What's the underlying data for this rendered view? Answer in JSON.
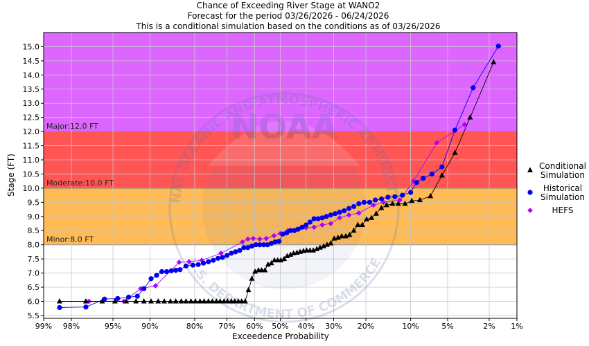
{
  "chart_data": {
    "type": "line",
    "title": "Chance of Exceeding River Stage at WANO2",
    "subtitle": "Forecast for the period 03/26/2026 - 06/24/2026",
    "subtitle2": "This is a conditional simulation based on the conditions as of 03/26/2026",
    "xlabel": "Exceedence Probability",
    "ylabel": "Stage (FT)",
    "x_scale": "normal-probability",
    "xlim": [
      99,
      1
    ],
    "ylim": [
      5.4,
      15.5
    ],
    "y_ticks": [
      {
        "v": 5.5,
        "label": "5.5"
      },
      {
        "v": 6.0,
        "label": "6.0"
      },
      {
        "v": 6.5,
        "label": "6.5"
      },
      {
        "v": 7.0,
        "label": "7.0"
      },
      {
        "v": 7.5,
        "label": "7.5"
      },
      {
        "v": 8.0,
        "label": "8.0"
      },
      {
        "v": 8.5,
        "label": "8.5"
      },
      {
        "v": 9.0,
        "label": "9.0"
      },
      {
        "v": 9.5,
        "label": "9.5"
      },
      {
        "v": 10.0,
        "label": "10.0"
      },
      {
        "v": 10.5,
        "label": "10.5"
      },
      {
        "v": 11.0,
        "label": "11.0"
      },
      {
        "v": 11.5,
        "label": "11.5"
      },
      {
        "v": 12.0,
        "label": "12.0"
      },
      {
        "v": 12.5,
        "label": "12.5"
      },
      {
        "v": 13.0,
        "label": "13.0"
      },
      {
        "v": 13.5,
        "label": "13.5"
      },
      {
        "v": 14.0,
        "label": "14.0"
      },
      {
        "v": 14.5,
        "label": "14.5"
      },
      {
        "v": 15.0,
        "label": "15.0"
      }
    ],
    "x_ticks": [
      {
        "p": 99,
        "label": "99%"
      },
      {
        "p": 98,
        "label": "98%"
      },
      {
        "p": 95,
        "label": "95%"
      },
      {
        "p": 90,
        "label": "90%"
      },
      {
        "p": 80,
        "label": "80%"
      },
      {
        "p": 70,
        "label": "70%"
      },
      {
        "p": 60,
        "label": "60%"
      },
      {
        "p": 50,
        "label": "50%"
      },
      {
        "p": 40,
        "label": "40%"
      },
      {
        "p": 30,
        "label": "30%"
      },
      {
        "p": 20,
        "label": "20%"
      },
      {
        "p": 10,
        "label": "10%"
      },
      {
        "p": 5,
        "label": "5%"
      },
      {
        "p": 2,
        "label": "2%"
      },
      {
        "p": 1,
        "label": "1%"
      }
    ],
    "flood_bands": [
      {
        "name": "Minor",
        "label": "Minor:8.0 FT",
        "from": 8.0,
        "to": 10.0,
        "color": "#ffbb55"
      },
      {
        "name": "Moderate",
        "label": "Moderate:10.0 FT",
        "from": 10.0,
        "to": 12.0,
        "color": "#ff5555"
      },
      {
        "name": "Major",
        "label": "Major:12.0 FT",
        "from": 12.0,
        "to": 15.5,
        "color": "#dd66ff"
      }
    ],
    "series": [
      {
        "name": "Conditional Simulation",
        "legend": [
          "Conditional",
          "Simulation"
        ],
        "marker": "triangle",
        "color": "#000000",
        "points": [
          [
            98.5,
            6.0
          ],
          [
            97.2,
            6.0
          ],
          [
            96.0,
            6.0
          ],
          [
            94.8,
            6.0
          ],
          [
            93.5,
            6.0
          ],
          [
            92.2,
            6.0
          ],
          [
            91.0,
            6.0
          ],
          [
            89.8,
            6.0
          ],
          [
            88.5,
            6.0
          ],
          [
            87.3,
            6.0
          ],
          [
            86.0,
            6.0
          ],
          [
            84.8,
            6.0
          ],
          [
            83.5,
            6.0
          ],
          [
            82.3,
            6.0
          ],
          [
            81.0,
            6.0
          ],
          [
            79.8,
            6.0
          ],
          [
            78.5,
            6.0
          ],
          [
            77.3,
            6.0
          ],
          [
            76.0,
            6.0
          ],
          [
            74.8,
            6.0
          ],
          [
            73.5,
            6.0
          ],
          [
            72.3,
            6.0
          ],
          [
            71.0,
            6.0
          ],
          [
            69.8,
            6.0
          ],
          [
            68.5,
            6.0
          ],
          [
            67.3,
            6.0
          ],
          [
            66.0,
            6.0
          ],
          [
            64.8,
            6.0
          ],
          [
            63.5,
            6.0
          ],
          [
            62.3,
            6.4
          ],
          [
            61.0,
            6.8
          ],
          [
            59.8,
            7.05
          ],
          [
            58.5,
            7.1
          ],
          [
            57.3,
            7.1
          ],
          [
            56.0,
            7.1
          ],
          [
            54.8,
            7.3
          ],
          [
            53.5,
            7.35
          ],
          [
            52.3,
            7.45
          ],
          [
            51.0,
            7.45
          ],
          [
            49.8,
            7.45
          ],
          [
            48.5,
            7.5
          ],
          [
            47.3,
            7.6
          ],
          [
            46.0,
            7.65
          ],
          [
            44.8,
            7.7
          ],
          [
            43.5,
            7.72
          ],
          [
            42.3,
            7.75
          ],
          [
            41.0,
            7.78
          ],
          [
            39.8,
            7.8
          ],
          [
            38.5,
            7.8
          ],
          [
            37.3,
            7.8
          ],
          [
            36.0,
            7.85
          ],
          [
            34.8,
            7.9
          ],
          [
            33.5,
            7.95
          ],
          [
            32.3,
            8.0
          ],
          [
            31.0,
            8.05
          ],
          [
            29.8,
            8.22
          ],
          [
            28.5,
            8.25
          ],
          [
            27.3,
            8.3
          ],
          [
            26.0,
            8.3
          ],
          [
            24.8,
            8.35
          ],
          [
            23.5,
            8.5
          ],
          [
            22.3,
            8.7
          ],
          [
            21.0,
            8.7
          ],
          [
            19.8,
            8.9
          ],
          [
            18.5,
            8.95
          ],
          [
            17.3,
            9.1
          ],
          [
            16.0,
            9.3
          ],
          [
            14.8,
            9.4
          ],
          [
            13.5,
            9.45
          ],
          [
            12.3,
            9.45
          ],
          [
            11.0,
            9.45
          ],
          [
            9.8,
            9.55
          ],
          [
            8.5,
            9.58
          ],
          [
            7.0,
            9.72
          ],
          [
            5.6,
            10.45
          ],
          [
            4.3,
            11.25
          ],
          [
            3.1,
            12.5
          ],
          [
            1.8,
            14.45
          ]
        ]
      },
      {
        "name": "Historical Simulation",
        "legend": [
          "Historical",
          "Simulation"
        ],
        "marker": "circle",
        "color": "#0000ee",
        "points": [
          [
            98.5,
            5.78
          ],
          [
            97.2,
            5.8
          ],
          [
            95.8,
            6.08
          ],
          [
            94.5,
            6.1
          ],
          [
            93.2,
            6.15
          ],
          [
            92.0,
            6.18
          ],
          [
            91.0,
            6.45
          ],
          [
            89.8,
            6.8
          ],
          [
            88.8,
            6.92
          ],
          [
            87.8,
            7.05
          ],
          [
            86.8,
            7.05
          ],
          [
            85.8,
            7.08
          ],
          [
            84.8,
            7.1
          ],
          [
            83.8,
            7.12
          ],
          [
            82.3,
            7.25
          ],
          [
            80.5,
            7.28
          ],
          [
            79.0,
            7.3
          ],
          [
            77.5,
            7.35
          ],
          [
            76.0,
            7.4
          ],
          [
            74.5,
            7.45
          ],
          [
            73.0,
            7.52
          ],
          [
            71.5,
            7.55
          ],
          [
            70.0,
            7.62
          ],
          [
            68.5,
            7.7
          ],
          [
            67.0,
            7.75
          ],
          [
            65.5,
            7.8
          ],
          [
            64.0,
            7.9
          ],
          [
            62.5,
            7.9
          ],
          [
            61.0,
            7.95
          ],
          [
            59.5,
            8.0
          ],
          [
            58.0,
            8.0
          ],
          [
            56.5,
            8.0
          ],
          [
            55.0,
            8.0
          ],
          [
            53.5,
            8.05
          ],
          [
            52.0,
            8.1
          ],
          [
            50.5,
            8.12
          ],
          [
            49.0,
            8.38
          ],
          [
            47.5,
            8.42
          ],
          [
            46.0,
            8.5
          ],
          [
            44.5,
            8.5
          ],
          [
            43.0,
            8.55
          ],
          [
            41.5,
            8.62
          ],
          [
            40.0,
            8.7
          ],
          [
            38.5,
            8.8
          ],
          [
            37.0,
            8.92
          ],
          [
            35.5,
            8.92
          ],
          [
            34.0,
            8.95
          ],
          [
            32.5,
            9.0
          ],
          [
            31.0,
            9.05
          ],
          [
            29.5,
            9.1
          ],
          [
            28.0,
            9.15
          ],
          [
            26.5,
            9.2
          ],
          [
            25.0,
            9.28
          ],
          [
            23.5,
            9.35
          ],
          [
            22.0,
            9.45
          ],
          [
            20.5,
            9.5
          ],
          [
            19.0,
            9.5
          ],
          [
            17.5,
            9.58
          ],
          [
            16.0,
            9.62
          ],
          [
            14.5,
            9.68
          ],
          [
            13.0,
            9.7
          ],
          [
            11.5,
            9.75
          ],
          [
            10.0,
            9.85
          ],
          [
            9.0,
            10.2
          ],
          [
            8.0,
            10.35
          ],
          [
            6.8,
            10.5
          ],
          [
            5.6,
            10.75
          ],
          [
            4.3,
            12.05
          ],
          [
            2.9,
            13.55
          ],
          [
            1.6,
            15.02
          ]
        ]
      },
      {
        "name": "HEFS",
        "legend": [
          "HEFS"
        ],
        "marker": "diamond",
        "color": "#aa00ff",
        "points": [
          [
            97.0,
            6.0
          ],
          [
            93.8,
            6.0
          ],
          [
            91.5,
            6.45
          ],
          [
            89.0,
            6.55
          ],
          [
            84.0,
            7.38
          ],
          [
            81.5,
            7.4
          ],
          [
            78.0,
            7.45
          ],
          [
            72.0,
            7.7
          ],
          [
            64.5,
            8.1
          ],
          [
            62.5,
            8.2
          ],
          [
            60.5,
            8.22
          ],
          [
            58.0,
            8.2
          ],
          [
            55.5,
            8.22
          ],
          [
            52.5,
            8.32
          ],
          [
            50.0,
            8.4
          ],
          [
            47.0,
            8.5
          ],
          [
            43.5,
            8.55
          ],
          [
            40.0,
            8.6
          ],
          [
            37.0,
            8.62
          ],
          [
            34.0,
            8.7
          ],
          [
            31.0,
            8.75
          ],
          [
            28.0,
            8.95
          ],
          [
            25.0,
            9.05
          ],
          [
            22.0,
            9.12
          ],
          [
            18.0,
            9.4
          ],
          [
            15.5,
            9.5
          ],
          [
            12.0,
            9.58
          ],
          [
            9.5,
            10.25
          ],
          [
            6.2,
            11.6
          ],
          [
            3.5,
            12.25
          ]
        ]
      }
    ]
  },
  "watermark": {
    "logo_text": "NOAA",
    "top_arc_text": "NATIONAL OCEANIC AND ATMOSPHERIC ADMINISTRATION",
    "bottom_arc_text": "U.S. DEPARTMENT OF COMMERCE"
  }
}
